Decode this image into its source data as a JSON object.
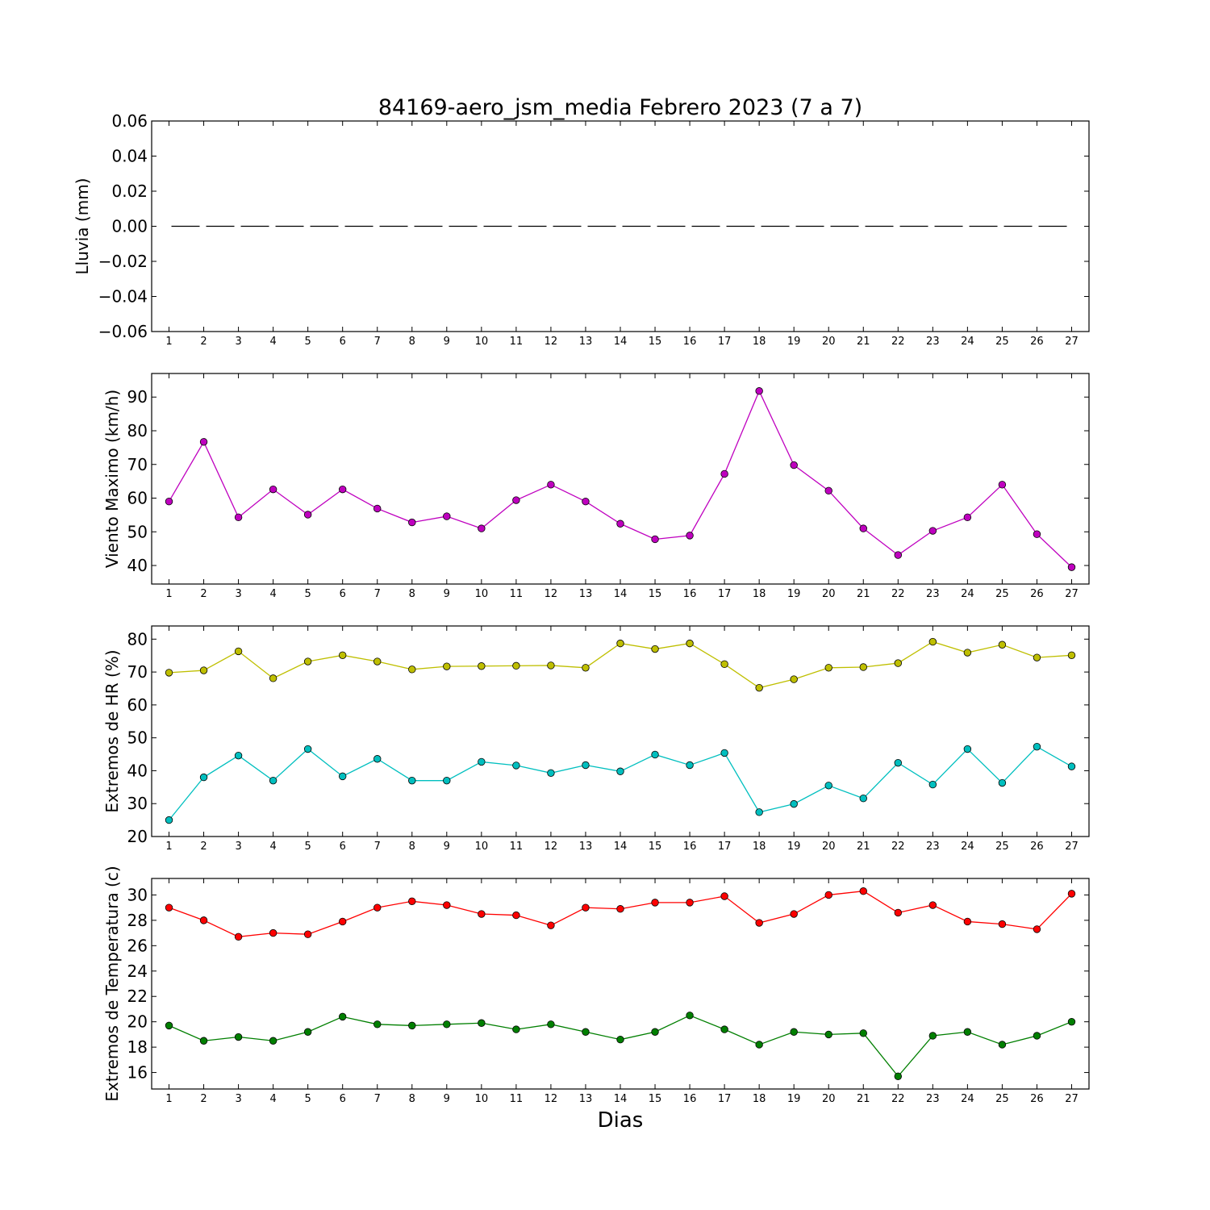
{
  "figure": {
    "title": "84169-aero_jsm_media Febrero 2023  (7 a 7)",
    "xlabel": "Dias"
  },
  "chart_data": [
    {
      "type": "line",
      "ylabel": "Lluvia (mm)",
      "ylim": [
        -0.06,
        0.06
      ],
      "yticks": [
        0.06,
        0.04,
        0.02,
        0.0,
        -0.02,
        -0.04,
        -0.06
      ],
      "ytick_labels": [
        "0.06",
        "0.04",
        "0.02",
        "0.00",
        "−0.02",
        "−0.04",
        "−0.06"
      ],
      "xlim": [
        0.5,
        27.5
      ],
      "x": [
        1,
        2,
        3,
        4,
        5,
        6,
        7,
        8,
        9,
        10,
        11,
        12,
        13,
        14,
        15,
        16,
        17,
        18,
        19,
        20,
        21,
        22,
        23,
        24,
        25,
        26,
        27
      ],
      "series": [
        {
          "color": "#000000",
          "style": "dashed",
          "marker": "none",
          "values": [
            0,
            0,
            0,
            0,
            0,
            0,
            0,
            0,
            0,
            0,
            0,
            0,
            0,
            0,
            0,
            0,
            0,
            0,
            0,
            0,
            0,
            0,
            0,
            0,
            0,
            0,
            0
          ]
        }
      ]
    },
    {
      "type": "line",
      "ylabel": "Viento Maximo (km/h)",
      "ylim": [
        34.5,
        97
      ],
      "yticks": [
        40,
        50,
        60,
        70,
        80,
        90
      ],
      "ytick_labels": [
        "40",
        "50",
        "60",
        "70",
        "80",
        "90"
      ],
      "xlim": [
        0.5,
        27.5
      ],
      "x": [
        1,
        2,
        3,
        4,
        5,
        6,
        7,
        8,
        9,
        10,
        11,
        12,
        13,
        14,
        15,
        16,
        17,
        18,
        19,
        20,
        21,
        22,
        23,
        24,
        25,
        26,
        27
      ],
      "series": [
        {
          "color": "#bf00bf",
          "style": "solid",
          "marker": "circle",
          "values": [
            59.0,
            76.7,
            54.3,
            62.6,
            55.1,
            62.6,
            56.9,
            52.8,
            54.6,
            51.0,
            59.4,
            64.0,
            59.0,
            52.4,
            47.8,
            48.9,
            67.2,
            91.8,
            69.8,
            62.2,
            51.0,
            43.1,
            50.3,
            54.3,
            64.0,
            49.3,
            39.5
          ]
        }
      ]
    },
    {
      "type": "line",
      "ylabel": "Extremos de HR (%)",
      "ylim": [
        20,
        84
      ],
      "yticks": [
        20,
        30,
        40,
        50,
        60,
        70,
        80
      ],
      "ytick_labels": [
        "20",
        "30",
        "40",
        "50",
        "60",
        "70",
        "80"
      ],
      "xlim": [
        0.5,
        27.5
      ],
      "x": [
        1,
        2,
        3,
        4,
        5,
        6,
        7,
        8,
        9,
        10,
        11,
        12,
        13,
        14,
        15,
        16,
        17,
        18,
        19,
        20,
        21,
        22,
        23,
        24,
        25,
        26,
        27
      ],
      "series": [
        {
          "color": "#bfbf00",
          "style": "solid",
          "marker": "circle",
          "values": [
            69.8,
            70.5,
            76.3,
            68.1,
            73.2,
            75.1,
            73.2,
            70.8,
            71.7,
            71.8,
            71.9,
            72.0,
            71.3,
            78.7,
            77.0,
            78.7,
            72.4,
            65.2,
            67.8,
            71.3,
            71.5,
            72.7,
            79.2,
            75.9,
            78.3,
            74.4,
            75.1
          ]
        },
        {
          "color": "#00bfbf",
          "style": "solid",
          "marker": "circle",
          "values": [
            25.0,
            38.0,
            44.6,
            37.0,
            46.6,
            38.3,
            43.6,
            37.0,
            37.0,
            42.7,
            41.6,
            39.3,
            41.7,
            39.8,
            44.9,
            41.7,
            45.4,
            27.4,
            29.9,
            35.5,
            31.6,
            42.4,
            35.8,
            46.6,
            36.3,
            47.3,
            41.3
          ]
        }
      ]
    },
    {
      "type": "line",
      "ylabel": "Extremos de Temperatura (c)",
      "ylim": [
        14.7,
        31.3
      ],
      "yticks": [
        16,
        18,
        20,
        22,
        24,
        26,
        28,
        30
      ],
      "ytick_labels": [
        "16",
        "18",
        "20",
        "22",
        "24",
        "26",
        "28",
        "30"
      ],
      "xlim": [
        0.5,
        27.5
      ],
      "x": [
        1,
        2,
        3,
        4,
        5,
        6,
        7,
        8,
        9,
        10,
        11,
        12,
        13,
        14,
        15,
        16,
        17,
        18,
        19,
        20,
        21,
        22,
        23,
        24,
        25,
        26,
        27
      ],
      "series": [
        {
          "color": "#ff0000",
          "style": "solid",
          "marker": "circle",
          "values": [
            29.0,
            28.0,
            26.7,
            27.0,
            26.9,
            27.9,
            29.0,
            29.5,
            29.2,
            28.5,
            28.4,
            27.6,
            29.0,
            28.9,
            29.4,
            29.4,
            29.9,
            27.8,
            28.5,
            30.0,
            30.3,
            28.6,
            29.2,
            27.9,
            27.7,
            27.3,
            30.1
          ]
        },
        {
          "color": "#007f00",
          "style": "solid",
          "marker": "circle",
          "values": [
            19.7,
            18.5,
            18.8,
            18.5,
            19.2,
            20.4,
            19.8,
            19.7,
            19.8,
            19.9,
            19.4,
            19.8,
            19.2,
            18.6,
            19.2,
            20.5,
            19.4,
            18.2,
            19.2,
            19.0,
            19.1,
            15.7,
            18.9,
            19.2,
            18.2,
            18.9,
            20.0
          ]
        }
      ]
    }
  ]
}
